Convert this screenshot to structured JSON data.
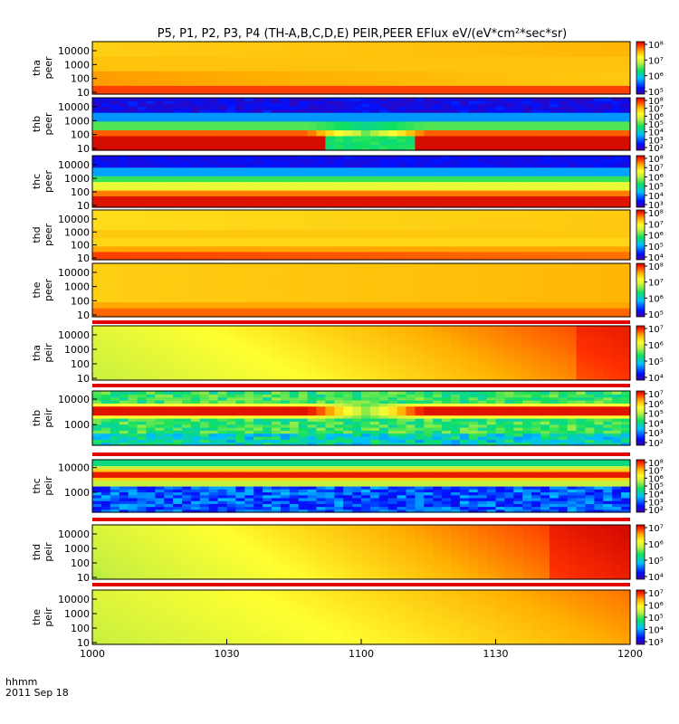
{
  "chart_data": {
    "type": "heatmap",
    "title": "P5, P1, P2, P3, P4 (TH-A,B,C,D,E) PEIR,PEER EFlux eV/(eV*cm²*sec*sr)",
    "x_label_top": "hhmm",
    "x_label_bottom": "2011 Sep 18",
    "x_range": [
      "1000",
      "1200"
    ],
    "x_ticks": [
      "1000",
      "1030",
      "1100",
      "1130",
      "1200"
    ],
    "y_scale": "log",
    "colormap": [
      "#4000a0",
      "#0010ff",
      "#00c0ff",
      "#10e060",
      "#c8f040",
      "#ffff30",
      "#ffb000",
      "#ff3000",
      "#c80000"
    ],
    "panels": [
      {
        "probe": "tha",
        "species": "peer",
        "y_ticks": [
          "10",
          "100",
          "1000",
          "10000"
        ],
        "colorbar_ticks": [
          "10⁵",
          "10⁶",
          "10⁷",
          "10⁸"
        ],
        "pattern": "elec_a"
      },
      {
        "probe": "thb",
        "species": "peer",
        "y_ticks": [
          "10",
          "100",
          "1000",
          "10000"
        ],
        "colorbar_ticks": [
          "10²",
          "10³",
          "10⁴",
          "10⁵",
          "10⁶",
          "10⁷",
          "10⁸"
        ],
        "pattern": "elec_b"
      },
      {
        "probe": "thc",
        "species": "peer",
        "y_ticks": [
          "10",
          "100",
          "1000",
          "10000"
        ],
        "colorbar_ticks": [
          "10³",
          "10⁴",
          "10⁵",
          "10⁶",
          "10⁷",
          "10⁸"
        ],
        "pattern": "elec_c"
      },
      {
        "probe": "thd",
        "species": "peer",
        "y_ticks": [
          "10",
          "100",
          "1000",
          "10000"
        ],
        "colorbar_ticks": [
          "10⁴",
          "10⁵",
          "10⁶",
          "10⁷",
          "10⁸"
        ],
        "pattern": "elec_d"
      },
      {
        "probe": "the",
        "species": "peer",
        "y_ticks": [
          "10",
          "100",
          "1000",
          "10000"
        ],
        "colorbar_ticks": [
          "10⁵",
          "10⁶",
          "10⁷",
          "10⁸"
        ],
        "pattern": "elec_e"
      },
      {
        "probe": "tha",
        "species": "peir",
        "y_ticks": [
          "10",
          "100",
          "1000",
          "10000"
        ],
        "colorbar_ticks": [
          "10⁴",
          "10⁵",
          "10⁶",
          "10⁷"
        ],
        "pattern": "ion_a"
      },
      {
        "probe": "thb",
        "species": "peir",
        "y_ticks": [
          "1000",
          "10000"
        ],
        "colorbar_ticks": [
          "10²",
          "10³",
          "10⁴",
          "10⁵",
          "10⁶",
          "10⁷"
        ],
        "pattern": "ion_b"
      },
      {
        "probe": "thc",
        "species": "peir",
        "y_ticks": [
          "1000",
          "10000"
        ],
        "colorbar_ticks": [
          "10²",
          "10³",
          "10⁴",
          "10⁵",
          "10⁶",
          "10⁷",
          "10⁸"
        ],
        "pattern": "ion_c"
      },
      {
        "probe": "thd",
        "species": "peir",
        "y_ticks": [
          "10",
          "100",
          "1000",
          "10000"
        ],
        "colorbar_ticks": [
          "10⁴",
          "10⁵",
          "10⁶",
          "10⁷"
        ],
        "pattern": "ion_d"
      },
      {
        "probe": "the",
        "species": "peir",
        "y_ticks": [
          "10",
          "100",
          "1000",
          "10000"
        ],
        "colorbar_ticks": [
          "10³",
          "10⁴",
          "10⁵",
          "10⁶",
          "10⁷"
        ],
        "pattern": "ion_e"
      }
    ]
  }
}
